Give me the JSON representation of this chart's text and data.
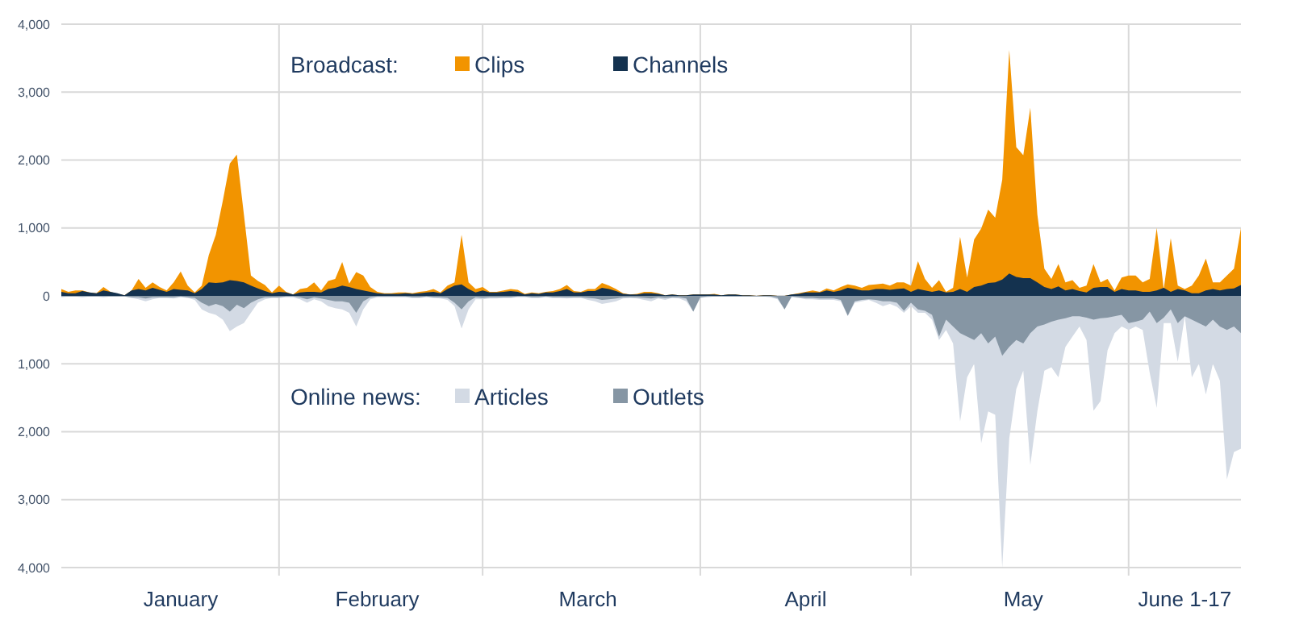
{
  "chart_data": {
    "type": "area",
    "x": [
      "--01-01",
      "--01-02",
      "--01-03",
      "--01-04",
      "--01-05",
      "--01-06",
      "--01-07",
      "--01-08",
      "--01-09",
      "--01-10",
      "--01-11",
      "--01-12",
      "--01-13",
      "--01-14",
      "--01-15",
      "--01-16",
      "--01-17",
      "--01-18",
      "--01-19",
      "--01-20",
      "--01-21",
      "--01-22",
      "--01-23",
      "--01-24",
      "--01-25",
      "--01-26",
      "--01-27",
      "--01-28",
      "--01-29",
      "--01-30",
      "--01-31",
      "--02-01",
      "--02-02",
      "--02-03",
      "--02-04",
      "--02-05",
      "--02-06",
      "--02-07",
      "--02-08",
      "--02-09",
      "--02-10",
      "--02-11",
      "--02-12",
      "--02-13",
      "--02-14",
      "--02-15",
      "--02-16",
      "--02-17",
      "--02-18",
      "--02-19",
      "--02-20",
      "--02-21",
      "--02-22",
      "--02-23",
      "--02-24",
      "--02-25",
      "--02-26",
      "--02-27",
      "--02-28",
      "--02-29",
      "--03-01",
      "--03-02",
      "--03-03",
      "--03-04",
      "--03-05",
      "--03-06",
      "--03-07",
      "--03-08",
      "--03-09",
      "--03-10",
      "--03-11",
      "--03-12",
      "--03-13",
      "--03-14",
      "--03-15",
      "--03-16",
      "--03-17",
      "--03-18",
      "--03-19",
      "--03-20",
      "--03-21",
      "--03-22",
      "--03-23",
      "--03-24",
      "--03-25",
      "--03-26",
      "--03-27",
      "--03-28",
      "--03-29",
      "--03-30",
      "--03-31",
      "--04-01",
      "--04-02",
      "--04-03",
      "--04-04",
      "--04-05",
      "--04-06",
      "--04-07",
      "--04-08",
      "--04-09",
      "--04-10",
      "--04-11",
      "--04-12",
      "--04-13",
      "--04-14",
      "--04-15",
      "--04-16",
      "--04-17",
      "--04-18",
      "--04-19",
      "--04-20",
      "--04-21",
      "--04-22",
      "--04-23",
      "--04-24",
      "--04-25",
      "--04-26",
      "--04-27",
      "--04-28",
      "--04-29",
      "--04-30",
      "--05-01",
      "--05-02",
      "--05-03",
      "--05-04",
      "--05-05",
      "--05-06",
      "--05-07",
      "--05-08",
      "--05-09",
      "--05-10",
      "--05-11",
      "--05-12",
      "--05-13",
      "--05-14",
      "--05-15",
      "--05-16",
      "--05-17",
      "--05-18",
      "--05-19",
      "--05-20",
      "--05-21",
      "--05-22",
      "--05-23",
      "--05-24",
      "--05-25",
      "--05-26",
      "--05-27",
      "--05-28",
      "--05-29",
      "--05-30",
      "--05-31",
      "--06-01",
      "--06-02",
      "--06-03",
      "--06-04",
      "--06-05",
      "--06-06",
      "--06-07",
      "--06-08",
      "--06-09",
      "--06-10",
      "--06-11",
      "--06-12",
      "--06-13",
      "--06-14",
      "--06-15",
      "--06-16",
      "--06-17"
    ],
    "series": [
      {
        "name": "Clips",
        "color": "#f29400",
        "values": [
          100,
          60,
          80,
          80,
          50,
          40,
          130,
          60,
          30,
          10,
          80,
          250,
          120,
          200,
          130,
          80,
          200,
          360,
          150,
          50,
          150,
          600,
          900,
          1400,
          1950,
          2080,
          1200,
          300,
          220,
          160,
          50,
          150,
          60,
          20,
          100,
          120,
          200,
          80,
          220,
          250,
          500,
          180,
          350,
          300,
          130,
          60,
          40,
          40,
          50,
          50,
          40,
          60,
          70,
          100,
          50,
          150,
          200,
          900,
          200,
          100,
          130,
          60,
          60,
          80,
          100,
          90,
          30,
          50,
          40,
          60,
          70,
          100,
          160,
          70,
          60,
          100,
          100,
          190,
          150,
          100,
          40,
          20,
          30,
          60,
          60,
          40,
          10,
          20,
          10,
          10,
          20,
          20,
          20,
          30,
          10,
          20,
          20,
          10,
          10,
          0,
          10,
          10,
          0,
          0,
          20,
          40,
          60,
          80,
          60,
          110,
          80,
          130,
          170,
          150,
          120,
          160,
          170,
          180,
          150,
          200,
          200,
          150,
          510,
          250,
          120,
          230,
          60,
          120,
          870,
          270,
          830,
          990,
          1270,
          1150,
          1710,
          3620,
          2190,
          2070,
          2770,
          1200,
          400,
          250,
          470,
          200,
          230,
          120,
          150,
          470,
          200,
          250,
          80,
          270,
          300,
          300,
          200,
          250,
          1000,
          100,
          850,
          150,
          100,
          150,
          300,
          550,
          200,
          200,
          300,
          400,
          1000
        ]
      },
      {
        "name": "Channels",
        "color": "#14324f",
        "values": [
          60,
          40,
          40,
          70,
          50,
          40,
          80,
          60,
          40,
          10,
          80,
          100,
          80,
          120,
          90,
          60,
          100,
          90,
          80,
          40,
          100,
          200,
          190,
          200,
          230,
          220,
          200,
          150,
          110,
          70,
          40,
          60,
          50,
          20,
          50,
          60,
          60,
          50,
          100,
          120,
          150,
          130,
          100,
          80,
          60,
          40,
          30,
          30,
          30,
          40,
          30,
          40,
          50,
          60,
          40,
          100,
          150,
          170,
          100,
          50,
          80,
          50,
          50,
          60,
          70,
          60,
          20,
          40,
          30,
          50,
          50,
          70,
          100,
          50,
          50,
          70,
          70,
          120,
          100,
          70,
          30,
          20,
          20,
          40,
          40,
          30,
          10,
          20,
          10,
          10,
          20,
          20,
          20,
          20,
          10,
          20,
          20,
          10,
          10,
          0,
          10,
          10,
          0,
          0,
          20,
          30,
          50,
          50,
          50,
          80,
          60,
          80,
          120,
          100,
          80,
          80,
          100,
          100,
          90,
          100,
          110,
          60,
          100,
          80,
          60,
          80,
          50,
          60,
          100,
          60,
          130,
          150,
          190,
          200,
          240,
          330,
          280,
          260,
          260,
          200,
          130,
          100,
          140,
          80,
          100,
          70,
          50,
          120,
          130,
          130,
          60,
          100,
          80,
          80,
          60,
          60,
          80,
          120,
          60,
          100,
          80,
          40,
          40,
          80,
          100,
          80,
          100,
          110,
          160
        ]
      },
      {
        "name": "Articles",
        "color": "#d3dae4",
        "values": [
          -20,
          -10,
          -10,
          -20,
          -10,
          -10,
          -20,
          -10,
          -10,
          -10,
          -30,
          -50,
          -80,
          -50,
          -30,
          -30,
          -40,
          -20,
          -30,
          -60,
          -200,
          -250,
          -280,
          -350,
          -520,
          -450,
          -400,
          -250,
          -100,
          -50,
          -30,
          -30,
          -20,
          -20,
          -50,
          -100,
          -50,
          -80,
          -150,
          -180,
          -200,
          -250,
          -450,
          -200,
          -50,
          -20,
          -20,
          -20,
          -20,
          -20,
          -30,
          -30,
          -20,
          -30,
          -40,
          -60,
          -150,
          -480,
          -200,
          -50,
          -50,
          -40,
          -40,
          -30,
          -30,
          -20,
          -20,
          -30,
          -30,
          -20,
          -30,
          -30,
          -40,
          -30,
          -30,
          -60,
          -80,
          -120,
          -100,
          -80,
          -40,
          -30,
          -40,
          -60,
          -80,
          -40,
          -60,
          -30,
          -40,
          -80,
          -230,
          -30,
          -20,
          -10,
          -10,
          -10,
          -10,
          -10,
          -10,
          -10,
          -10,
          -20,
          -50,
          -200,
          -20,
          -30,
          -50,
          -50,
          -60,
          -60,
          -60,
          -80,
          -300,
          -100,
          -80,
          -60,
          -100,
          -150,
          -120,
          -160,
          -250,
          -150,
          -250,
          -250,
          -350,
          -650,
          -500,
          -700,
          -1850,
          -1200,
          -1000,
          -2170,
          -1700,
          -1750,
          -4000,
          -2100,
          -1370,
          -1100,
          -2490,
          -1700,
          -1100,
          -1050,
          -1200,
          -750,
          -600,
          -450,
          -650,
          -1690,
          -1550,
          -800,
          -550,
          -450,
          -500,
          -450,
          -500,
          -1130,
          -1650,
          -400,
          -400,
          -970,
          -300,
          -1200,
          -1000,
          -1450,
          -1000,
          -1250,
          -2700,
          -2300,
          -2250
        ]
      },
      {
        "name": "Outlets",
        "color": "#8696a4",
        "values": [
          -10,
          -10,
          -10,
          -10,
          -10,
          -10,
          -10,
          -10,
          -10,
          -10,
          -20,
          -20,
          -40,
          -20,
          -20,
          -20,
          -20,
          -10,
          -20,
          -30,
          -100,
          -150,
          -120,
          -150,
          -230,
          -130,
          -180,
          -100,
          -50,
          -20,
          -20,
          -20,
          -10,
          -10,
          -20,
          -50,
          -20,
          -40,
          -60,
          -80,
          -80,
          -100,
          -250,
          -80,
          -20,
          -10,
          -10,
          -10,
          -10,
          -10,
          -20,
          -20,
          -10,
          -20,
          -20,
          -30,
          -100,
          -200,
          -80,
          -20,
          -30,
          -20,
          -20,
          -20,
          -20,
          -10,
          -10,
          -20,
          -20,
          -10,
          -20,
          -20,
          -20,
          -20,
          -20,
          -30,
          -40,
          -60,
          -50,
          -40,
          -20,
          -20,
          -20,
          -30,
          -40,
          -20,
          -30,
          -20,
          -20,
          -40,
          -230,
          -20,
          -10,
          -10,
          -10,
          -10,
          -10,
          -10,
          -10,
          -10,
          -10,
          -10,
          -30,
          -200,
          -10,
          -20,
          -30,
          -30,
          -40,
          -40,
          -40,
          -60,
          -290,
          -80,
          -60,
          -50,
          -60,
          -80,
          -80,
          -100,
          -220,
          -100,
          -200,
          -220,
          -280,
          -600,
          -350,
          -450,
          -550,
          -600,
          -650,
          -550,
          -700,
          -600,
          -880,
          -750,
          -650,
          -700,
          -550,
          -450,
          -420,
          -380,
          -350,
          -330,
          -300,
          -300,
          -320,
          -350,
          -330,
          -320,
          -300,
          -280,
          -400,
          -380,
          -350,
          -230,
          -400,
          -320,
          -200,
          -400,
          -300,
          -350,
          -400,
          -450,
          -350,
          -450,
          -500,
          -450,
          -550
        ]
      }
    ],
    "xlim": [
      "--01-01",
      "--06-17"
    ],
    "xticks": [
      {
        "value": "--01-18",
        "label": "January"
      },
      {
        "value": "--02-15",
        "label": "February"
      },
      {
        "value": "--03-16",
        "label": "March"
      },
      {
        "value": "--04-16",
        "label": "April"
      },
      {
        "value": "--05-17",
        "label": "May"
      },
      {
        "value": "--06-09",
        "label": "June 1-17"
      }
    ],
    "ylim": [
      -4000,
      4000
    ],
    "yticks": [
      {
        "value": 4000,
        "label": "4,000"
      },
      {
        "value": 3000,
        "label": "3,000"
      },
      {
        "value": 2000,
        "label": "2,000"
      },
      {
        "value": 1000,
        "label": "1,000"
      },
      0,
      {
        "value": -1000,
        "label": "1,000"
      },
      {
        "value": -2000,
        "label": "2,000"
      },
      {
        "value": -3000,
        "label": "3,000"
      },
      {
        "value": -4000,
        "label": "4,000"
      }
    ],
    "ref_lines": [
      {
        "axis": "x",
        "value": "--02-01",
        "color": "#d9d9d9"
      },
      {
        "axis": "x",
        "value": "--03-01",
        "color": "#d9d9d9"
      },
      {
        "axis": "x",
        "value": "--04-01",
        "color": "#d9d9d9"
      },
      {
        "axis": "x",
        "value": "--05-01",
        "color": "#d9d9d9"
      },
      {
        "axis": "x",
        "value": "--06-01",
        "color": "#d9d9d9"
      }
    ],
    "annotations": [
      "Broadcast:",
      "Online news:"
    ],
    "grid": "y",
    "legend": "top"
  }
}
